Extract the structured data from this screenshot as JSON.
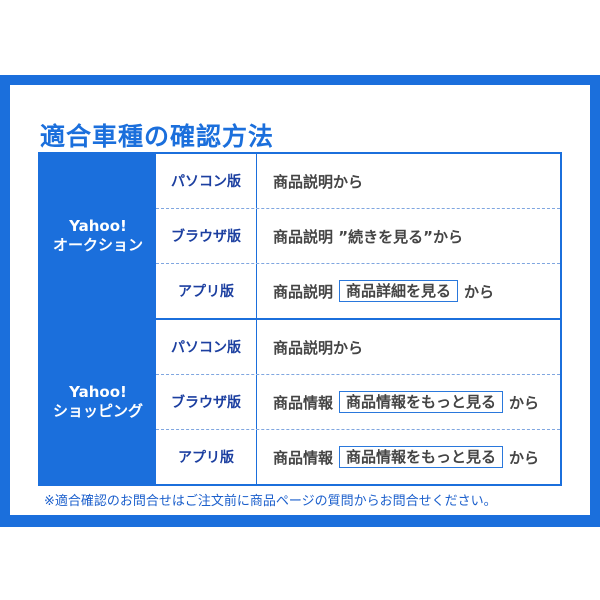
{
  "title": "適合車種の確認方法",
  "groups": [
    {
      "site": [
        "Yahoo!",
        "オークション"
      ],
      "rows": [
        {
          "version": "パソコン版",
          "prefix": "商品説明から",
          "box": "",
          "suffix": ""
        },
        {
          "version": "ブラウザ版",
          "prefix": "商品説明 ”続きを見る”から",
          "box": "",
          "suffix": ""
        },
        {
          "version": "アプリ版",
          "prefix": "商品説明",
          "box": "商品詳細を見る",
          "suffix": "から"
        }
      ]
    },
    {
      "site": [
        "Yahoo!",
        "ショッピング"
      ],
      "rows": [
        {
          "version": "パソコン版",
          "prefix": "商品説明から",
          "box": "",
          "suffix": ""
        },
        {
          "version": "ブラウザ版",
          "prefix": "商品情報",
          "box": "商品情報をもっと見る",
          "suffix": "から"
        },
        {
          "version": "アプリ版",
          "prefix": "商品情報",
          "box": "商品情報をもっと見る",
          "suffix": "から"
        }
      ]
    }
  ],
  "note": "※適合確認のお問合せはご注文前に商品ページの質問からお問合せください。",
  "colors": {
    "brand_blue": "#1b6fdc",
    "version_text": "#1c3fa0",
    "body_text": "#444444"
  }
}
